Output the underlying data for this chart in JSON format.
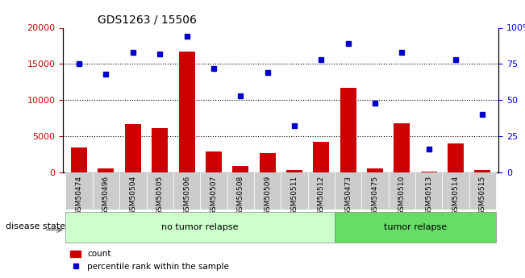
{
  "title": "GDS1263 / 15506",
  "samples": [
    "GSM50474",
    "GSM50496",
    "GSM50504",
    "GSM50505",
    "GSM50506",
    "GSM50507",
    "GSM50508",
    "GSM50509",
    "GSM50511",
    "GSM50512",
    "GSM50473",
    "GSM50475",
    "GSM50510",
    "GSM50513",
    "GSM50514",
    "GSM50515"
  ],
  "counts": [
    3400,
    600,
    6700,
    6100,
    16700,
    2900,
    900,
    2700,
    300,
    4200,
    11700,
    600,
    6800,
    100,
    4000,
    300
  ],
  "percentiles": [
    75,
    68,
    83,
    82,
    94,
    72,
    53,
    69,
    32,
    78,
    89,
    48,
    83,
    16,
    78,
    40
  ],
  "no_tumor_count": 10,
  "tumor_count": 6,
  "left_ylim": [
    0,
    20000
  ],
  "right_ylim": [
    0,
    100
  ],
  "left_yticks": [
    0,
    5000,
    10000,
    15000,
    20000
  ],
  "right_yticks": [
    0,
    25,
    50,
    75,
    100
  ],
  "bar_color": "#cc0000",
  "dot_color": "#0000cc",
  "no_tumor_color": "#ccffcc",
  "tumor_color": "#66dd66",
  "label_bg_color": "#cccccc",
  "disease_state_label": "disease state",
  "no_tumor_label": "no tumor relapse",
  "tumor_label": "tumor relapse",
  "count_legend": "count",
  "percentile_legend": "percentile rank within the sample"
}
